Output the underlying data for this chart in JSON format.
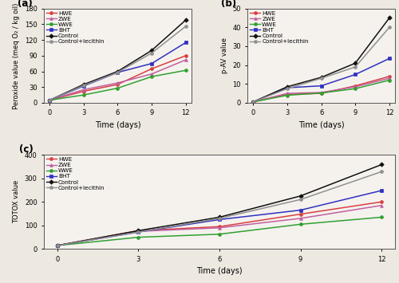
{
  "days": [
    0,
    3,
    6,
    9,
    12
  ],
  "panel_a": {
    "title": "(a)",
    "ylabel": "Peroxide value (meq O₂ / kg oil)",
    "xlabel": "Time (days)",
    "ylim": [
      0,
      180
    ],
    "yticks": [
      0,
      30,
      60,
      90,
      120,
      150,
      180
    ],
    "series": {
      "HWE": [
        5,
        22,
        35,
        65,
        90
      ],
      "ZWE": [
        5,
        25,
        38,
        55,
        82
      ],
      "WWE": [
        5,
        15,
        28,
        50,
        62
      ],
      "BHT": [
        5,
        32,
        58,
        75,
        115
      ],
      "Control": [
        5,
        35,
        60,
        100,
        158
      ],
      "Control+lecithin": [
        5,
        33,
        58,
        95,
        146
      ]
    }
  },
  "panel_b": {
    "title": "(b)",
    "ylabel": "p-AV value",
    "xlabel": "Time (days)",
    "ylim": [
      0,
      50
    ],
    "yticks": [
      0,
      10,
      20,
      30,
      40,
      50
    ],
    "series": {
      "HWE": [
        0.5,
        4.5,
        5.0,
        9.0,
        14.0
      ],
      "ZWE": [
        0.5,
        5.0,
        5.5,
        8.5,
        13.0
      ],
      "WWE": [
        0.5,
        4.0,
        5.2,
        7.5,
        12.0
      ],
      "BHT": [
        0.5,
        8.0,
        9.0,
        15.0,
        23.5
      ],
      "Control": [
        0.5,
        8.5,
        13.5,
        21.0,
        45.0
      ],
      "Control+lecithin": [
        0.5,
        7.5,
        13.0,
        19.0,
        40.0
      ]
    }
  },
  "panel_c": {
    "title": "(c)",
    "ylabel": "TOTOX value",
    "xlabel": "Time (days)",
    "ylim": [
      0,
      400
    ],
    "yticks": [
      0,
      100,
      200,
      300,
      400
    ],
    "series": {
      "HWE": [
        15,
        78,
        95,
        148,
        200
      ],
      "ZWE": [
        15,
        75,
        90,
        130,
        185
      ],
      "WWE": [
        15,
        50,
        63,
        105,
        135
      ],
      "BHT": [
        15,
        72,
        125,
        165,
        248
      ],
      "Control": [
        15,
        78,
        135,
        225,
        358
      ],
      "Control+lecithin": [
        15,
        72,
        130,
        210,
        328
      ]
    }
  },
  "legend_order": [
    "HWE",
    "ZWE",
    "WWE",
    "BHT",
    "Control",
    "Control+lecithin"
  ],
  "colors": {
    "HWE": "#d84040",
    "ZWE": "#c060a0",
    "WWE": "#30a030",
    "BHT": "#3030c0",
    "Control": "#101010",
    "Control+lecithin": "#909090"
  },
  "markers": {
    "HWE": "o",
    "ZWE": "^",
    "WWE": "o",
    "BHT": "s",
    "Control": "D",
    "Control+lecithin": "o"
  },
  "linestyles": {
    "HWE": "-",
    "ZWE": "-",
    "WWE": "-",
    "BHT": "-",
    "Control": "-",
    "Control+lecithin": "-"
  },
  "background_color": "#ede8e0",
  "plot_bg": "#f5f2ee"
}
